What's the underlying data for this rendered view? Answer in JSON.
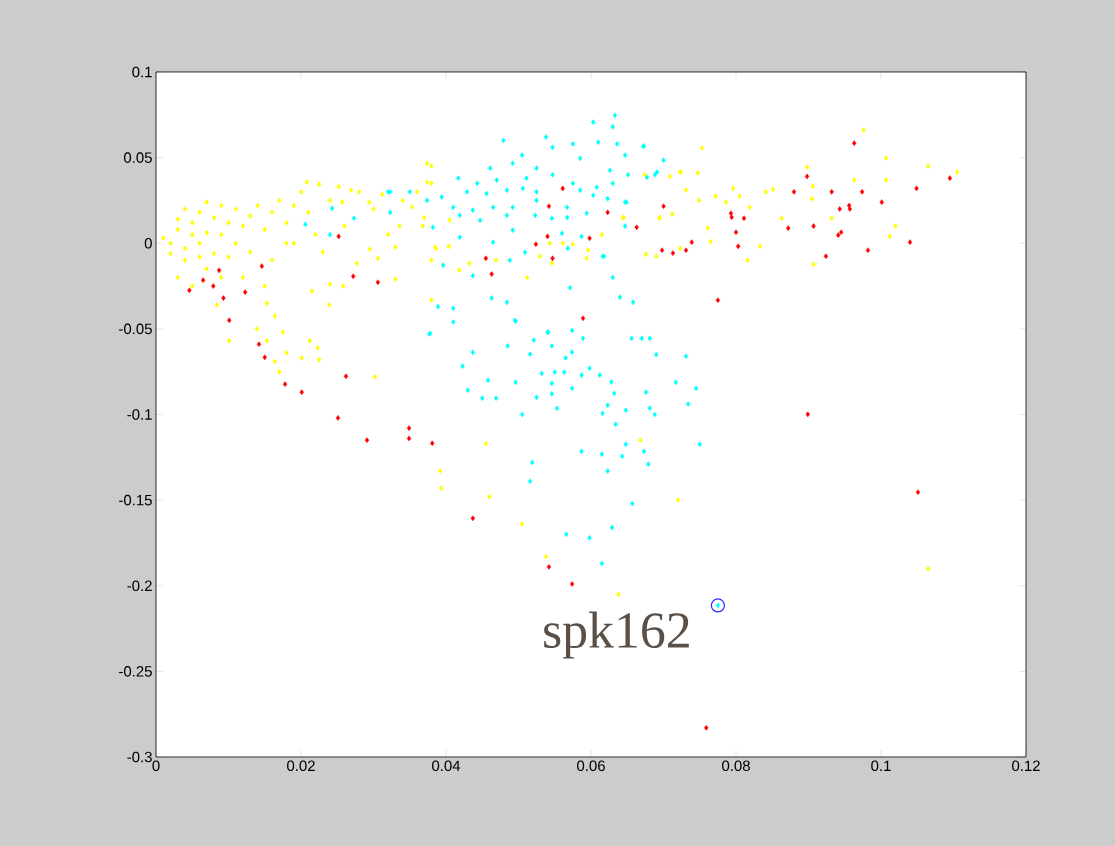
{
  "chart_data": {
    "type": "scatter",
    "marker": "diamond",
    "xlim": [
      0,
      0.12
    ],
    "ylim": [
      -0.3,
      0.1
    ],
    "xticks": [
      0,
      0.02,
      0.04,
      0.06,
      0.08,
      0.1,
      0.12
    ],
    "yticks": [
      -0.3,
      -0.25,
      -0.2,
      -0.15,
      -0.1,
      -0.05,
      0,
      0.05,
      0.1
    ],
    "annotations": [
      {
        "text": "spk162",
        "x": 0.0775,
        "y": -0.2115
      }
    ],
    "series": [
      {
        "color": "#ffff00",
        "x": [
          0.002,
          0.003,
          0.004,
          0.005,
          0.006,
          0.007,
          0.008,
          0.009,
          0.01,
          0.011,
          0.012,
          0.013,
          0.014,
          0.015,
          0.016,
          0.017,
          0.018,
          0.019,
          0.02,
          0.021,
          0.022,
          0.023,
          0.024,
          0.026,
          0.028,
          0.03,
          0.032,
          0.034,
          0.036,
          0.037,
          0.038,
          0.038,
          0.003,
          0.005,
          0.004,
          0.009,
          0.012,
          0.015,
          0.001,
          0.002,
          0.003,
          0.006,
          0.007,
          0.008,
          0.01,
          0.011,
          0.013,
          0.006,
          0.009,
          0.016,
          0.018,
          0.019,
          0.005,
          0.004,
          0.007,
          0.0101,
          0.0139,
          0.0153,
          0.0175,
          0.0164,
          0.018,
          0.0201,
          0.0212,
          0.0223,
          0.0225,
          0.017,
          0.0302,
          0.0239,
          0.0455,
          0.0392,
          0.0393,
          0.046,
          0.0505,
          0.0538,
          0.038,
          0.0638,
          0.0668,
          0.072,
          0.1065,
          0.0753,
          0.0976,
          0.1007,
          0.1065,
          0.1105,
          0.0898,
          0.0963,
          0.1007,
          0.0906,
          0.0851,
          0.0841,
          0.0796,
          0.0805,
          0.0772,
          0.0749,
          0.0786,
          0.0731,
          0.0723,
          0.0709,
          0.0747,
          0.0674,
          0.0905,
          0.0819,
          0.0863,
          0.0932,
          0.102,
          0.1012,
          0.0694,
          0.0712,
          0.0761,
          0.0765,
          0.0833,
          0.0816,
          0.0907,
          0.0676,
          0.069,
          0.0723,
          0.0645,
          0.0374,
          0.0374,
          0.0724,
          0.0695,
          0.0644,
          0.0615,
          0.0561,
          0.0575,
          0.0543,
          0.053,
          0.0546,
          0.0469,
          0.0432,
          0.0418,
          0.0512,
          0.038,
          0.0385,
          0.0404,
          0.033,
          0.033,
          0.0368,
          0.0336,
          0.0405,
          0.0353,
          0.0596,
          0.0594,
          0.0252,
          0.0269,
          0.0225,
          0.0208,
          0.0294,
          0.0312,
          0.0257,
          0.0306,
          0.024,
          0.0258,
          0.0215,
          0.0386,
          0.0277,
          0.0295,
          0.0153,
          0.0164,
          0.0084
        ],
        "values": [
          0,
          0.008,
          -0.01,
          0.012,
          0,
          -0.015,
          0.015,
          0.005,
          -0.008,
          0.02,
          0.01,
          -0.005,
          0.022,
          0.008,
          -0.01,
          0.025,
          0.012,
          0,
          0.03,
          0.018,
          0.005,
          -0.005,
          0.025,
          0.01,
          0.03,
          0.02,
          0.005,
          0.025,
          0.03,
          0.015,
          0.045,
          0.035,
          -0.02,
          -0.025,
          0.02,
          -0.02,
          -0.02,
          -0.025,
          0.003,
          -0.006,
          0.014,
          0.018,
          0.006,
          -0.006,
          0.012,
          0,
          0.016,
          -0.008,
          0.022,
          0.018,
          0,
          0.022,
          0.005,
          -0.003,
          0.024,
          -0.057,
          -0.05,
          -0.057,
          -0.052,
          -0.069,
          -0.064,
          -0.067,
          -0.057,
          -0.061,
          -0.068,
          -0.075,
          -0.078,
          -0.036,
          -0.117,
          -0.133,
          -0.143,
          -0.148,
          -0.164,
          -0.183,
          -0.033,
          -0.205,
          -0.115,
          -0.15,
          -0.19,
          0.0555,
          0.066,
          0.0497,
          0.045,
          0.0415,
          0.0444,
          0.0368,
          0.0368,
          0.0333,
          0.0315,
          0.03,
          0.032,
          0.0274,
          0.0274,
          0.025,
          0.024,
          0.031,
          0.0415,
          0.039,
          0.041,
          0.04,
          0.026,
          0.021,
          0.0146,
          0.0146,
          0.01,
          0.004,
          0.0146,
          0.017,
          0.0088,
          0.001,
          -0.0018,
          -0.01,
          -0.0123,
          -0.0064,
          -0.0076,
          -0.003,
          0.015,
          0.0467,
          0.0357,
          0.0415,
          0.015,
          0.015,
          0.005,
          0,
          -0.0006,
          0,
          -0.0076,
          -0.0117,
          -0.01,
          -0.0117,
          -0.0158,
          -0.02,
          -0.01,
          -0.0023,
          -0.0018,
          -0.0023,
          -0.021,
          0.01,
          0.01,
          0.0134,
          0.021,
          -0.004,
          -0.0088,
          0.033,
          0.031,
          0.0345,
          0.0357,
          0.024,
          0.0286,
          0.024,
          -0.0088,
          -0.024,
          -0.025,
          -0.028,
          -0.003,
          -0.0117,
          -0.0035,
          -0.035,
          -0.0426,
          -0.036
        ]
      },
      {
        "color": "#00ffff",
        "x": [
          0.0479,
          0.0538,
          0.0603,
          0.0633,
          0.063,
          0.0575,
          0.061,
          0.0672,
          0.0636,
          0.07,
          0.0647,
          0.0461,
          0.0505,
          0.0547,
          0.0492,
          0.0525,
          0.0585,
          0.0626,
          0.0651,
          0.0677,
          0.0691,
          0.0417,
          0.0443,
          0.047,
          0.0511,
          0.0547,
          0.0575,
          0.0608,
          0.063,
          0.0374,
          0.0394,
          0.0429,
          0.0456,
          0.0484,
          0.0506,
          0.0525,
          0.0585,
          0.0603,
          0.041,
          0.0437,
          0.0465,
          0.0492,
          0.0525,
          0.0567,
          0.0594,
          0.0623,
          0.0649,
          0.0323,
          0.035,
          0.0323,
          0.0382,
          0.0419,
          0.0447,
          0.0484,
          0.0523,
          0.0546,
          0.0567,
          0.0419,
          0.0465,
          0.0492,
          0.0509,
          0.056,
          0.0587,
          0.0488,
          0.0396,
          0.0437,
          0.0568,
          0.0618,
          0.0571,
          0.0647,
          0.063,
          0.064,
          0.0658,
          0.0463,
          0.0484,
          0.0389,
          0.041,
          0.0495,
          0.0378,
          0.0541,
          0.0574,
          0.0673,
          0.0688,
          0.0647,
          0.0616,
          0.0656,
          0.0681,
          0.069,
          0.0731,
          0.0377,
          0.041,
          0.0496,
          0.0437,
          0.0423,
          0.043,
          0.045,
          0.0469,
          0.0458,
          0.0496,
          0.0485,
          0.0516,
          0.0521,
          0.054,
          0.0546,
          0.0532,
          0.055,
          0.0546,
          0.0546,
          0.0525,
          0.0553,
          0.0505,
          0.0563,
          0.0574,
          0.0587,
          0.0598,
          0.0612,
          0.0628,
          0.0632,
          0.0623,
          0.0616,
          0.0634,
          0.0648,
          0.0589,
          0.0574,
          0.0565,
          0.067,
          0.0676,
          0.0681,
          0.0688,
          0.0717,
          0.0734,
          0.0745,
          0.075,
          0.0587,
          0.0615,
          0.0643,
          0.0648,
          0.0673,
          0.0679,
          0.0519,
          0.0516,
          0.0623,
          0.0657,
          0.0629,
          0.0566,
          0.0598,
          0.0615,
          0.0775,
          0.0243,
          0.0206,
          0.0273,
          0.024,
          0.032
        ],
        "values": [
          0.06,
          0.062,
          0.0707,
          0.0747,
          0.068,
          0.058,
          0.059,
          0.0566,
          0.058,
          0.0485,
          0.0514,
          0.0438,
          0.0514,
          0.056,
          0.0467,
          0.0438,
          0.0496,
          0.0426,
          0.04,
          0.0385,
          0.0415,
          0.038,
          0.035,
          0.0368,
          0.038,
          0.04,
          0.035,
          0.0327,
          0.035,
          0.025,
          0.027,
          0.03,
          0.029,
          0.031,
          0.032,
          0.03,
          0.031,
          0.028,
          0.021,
          0.0193,
          0.021,
          0.021,
          0.025,
          0.021,
          0.0175,
          0.026,
          0.024,
          0.03,
          0.03,
          0.018,
          0.0093,
          0.0163,
          0.0134,
          0.0163,
          0.0163,
          0.0146,
          0.015,
          0.0035,
          0.0006,
          0.0076,
          -0.0053,
          0.0058,
          0.004,
          -0.01,
          -0.0128,
          -0.019,
          -0.003,
          -0.0076,
          -0.026,
          0.01,
          -0.02,
          -0.0315,
          -0.0345,
          -0.032,
          -0.0345,
          -0.037,
          -0.038,
          -0.045,
          -0.0526,
          -0.052,
          -0.051,
          0.0567,
          0.04,
          0.024,
          -0.0076,
          -0.0555,
          -0.0555,
          -0.065,
          -0.066,
          -0.053,
          -0.046,
          -0.0456,
          -0.0637,
          -0.0718,
          -0.0858,
          -0.0905,
          -0.0905,
          -0.08,
          -0.0812,
          -0.06,
          -0.0648,
          -0.0566,
          -0.052,
          -0.06,
          -0.076,
          -0.0753,
          -0.0818,
          -0.088,
          -0.09,
          -0.0964,
          -0.1,
          -0.0753,
          -0.0847,
          -0.077,
          -0.073,
          -0.077,
          -0.081,
          -0.0876,
          -0.0946,
          -0.0993,
          -0.1057,
          -0.0975,
          -0.0555,
          -0.0636,
          -0.067,
          -0.0555,
          -0.087,
          -0.0963,
          -0.1,
          -0.0812,
          -0.094,
          -0.0847,
          -0.1174,
          -0.1215,
          -0.1232,
          -0.1244,
          -0.1174,
          -0.1215,
          -0.129,
          -0.128,
          -0.139,
          -0.133,
          -0.152,
          -0.166,
          -0.17,
          -0.172,
          -0.187,
          -0.2115,
          0.0204,
          0.011,
          0.0146,
          0.005,
          0.03
        ]
      },
      {
        "color": "#ff0000",
        "x": [
          0.0252,
          0.0146,
          0.0087,
          0.0065,
          0.0079,
          0.0046,
          0.0093,
          0.0123,
          0.0101,
          0.0272,
          0.0306,
          0.0561,
          0.0542,
          0.054,
          0.0524,
          0.0455,
          0.0463,
          0.0547,
          0.0598,
          0.0589,
          0.0262,
          0.0142,
          0.015,
          0.0178,
          0.0201,
          0.0251,
          0.0291,
          0.0349,
          0.0349,
          0.0381,
          0.0437,
          0.0542,
          0.0574,
          0.0623,
          0.07,
          0.0663,
          0.0698,
          0.0713,
          0.0731,
          0.0739,
          0.0775,
          0.0963,
          0.0898,
          0.088,
          0.0932,
          0.0974,
          0.1049,
          0.1095,
          0.0943,
          0.0956,
          0.0957,
          0.1001,
          0.0907,
          0.0872,
          0.0941,
          0.0945,
          0.104,
          0.0982,
          0.0924,
          0.0793,
          0.0794,
          0.0811,
          0.08,
          0.0803,
          0.0899,
          0.1051,
          0.0759
        ],
        "values": [
          0.004,
          -0.0134,
          -0.0158,
          -0.0216,
          -0.025,
          -0.0275,
          -0.032,
          -0.0286,
          -0.045,
          -0.0193,
          -0.0228,
          0.032,
          0.0216,
          0.004,
          -0.0006,
          -0.0088,
          -0.018,
          -0.0088,
          0.0029,
          -0.0438,
          -0.0777,
          -0.059,
          -0.0666,
          -0.0823,
          -0.087,
          -0.102,
          -0.115,
          -0.108,
          -0.114,
          -0.1168,
          -0.1606,
          -0.189,
          -0.199,
          0.018,
          0.0216,
          0.0093,
          -0.0041,
          -0.0058,
          -0.0041,
          0.0006,
          -0.0333,
          0.0584,
          0.039,
          0.03,
          0.03,
          0.03,
          0.032,
          0.038,
          0.02,
          0.022,
          0.02,
          0.024,
          0.01,
          0.0088,
          0.0047,
          0.0064,
          0.0006,
          -0.0041,
          -0.0076,
          0.0175,
          0.0152,
          0.0146,
          0.0064,
          -0.0018,
          -0.0999,
          -0.1454,
          -0.283
        ]
      }
    ]
  }
}
